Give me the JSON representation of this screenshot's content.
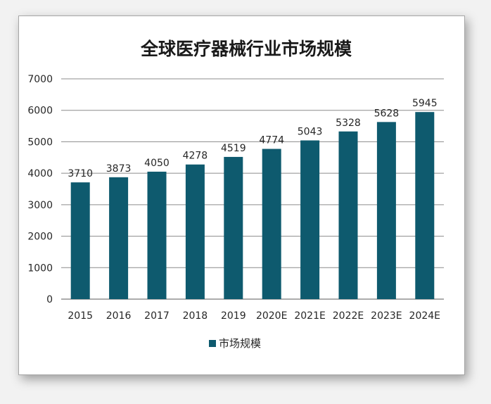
{
  "chart_data": {
    "type": "bar",
    "title": "全球医疗器械行业市场规模",
    "categories": [
      "2015",
      "2016",
      "2017",
      "2018",
      "2019",
      "2020E",
      "2021E",
      "2022E",
      "2023E",
      "2024E"
    ],
    "series": [
      {
        "name": "市场规模",
        "values": [
          3710,
          3873,
          4050,
          4278,
          4519,
          4774,
          5043,
          5328,
          5628,
          5945
        ],
        "color": "#0e5a6e"
      }
    ],
    "ylim": [
      0,
      7000
    ],
    "yticks": [
      "0",
      "1000",
      "2000",
      "3000",
      "4000",
      "5000",
      "6000",
      "7000"
    ],
    "xlabel": "",
    "ylabel": "",
    "grid": true,
    "legend": "bottom",
    "data_labels": true
  }
}
